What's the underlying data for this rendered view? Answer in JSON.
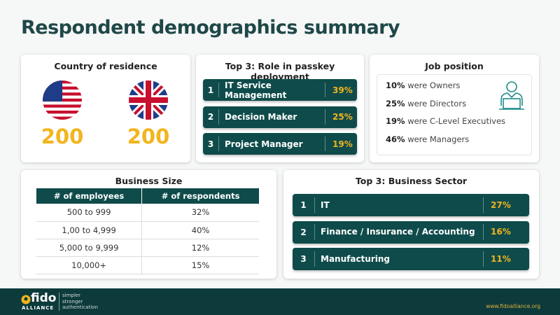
{
  "title": "Respondent demographics summary",
  "country": {
    "title": "Country of residence",
    "counts": [
      "200",
      "200"
    ]
  },
  "role": {
    "title": "Top 3: Role in passkey deployment",
    "items": [
      {
        "rank": "1",
        "label": "IT Service Management",
        "percent": "39%"
      },
      {
        "rank": "2",
        "label": "Decision Maker",
        "percent": "25%"
      },
      {
        "rank": "3",
        "label": "Project Manager",
        "percent": "19%"
      }
    ]
  },
  "job": {
    "title": "Job position",
    "items": [
      {
        "percent": "10%",
        "text": "were Owners"
      },
      {
        "percent": "25%",
        "text": "were Directors"
      },
      {
        "percent": "19%",
        "text": "were C-Level Executives"
      },
      {
        "percent": "46%",
        "text": "were Managers"
      }
    ]
  },
  "business_size": {
    "title": "Business Size",
    "table": {
      "header": [
        "# of employees",
        "# of respondents"
      ],
      "rows": [
        [
          "500 to 999",
          "32%"
        ],
        [
          "1,00 to 4,999",
          "40%"
        ],
        [
          "5,000 to 9,999",
          "12%"
        ],
        [
          "10,000+",
          "15%"
        ]
      ]
    }
  },
  "sector": {
    "title": "Top 3: Business Sector",
    "items": [
      {
        "rank": "1",
        "label": "IT",
        "percent": "27%"
      },
      {
        "rank": "2",
        "label": "Finance / Insurance / Accounting",
        "percent": "16%"
      },
      {
        "rank": "3",
        "label": "Manufacturing",
        "percent": "11%"
      }
    ]
  },
  "footer": {
    "logo": "fido",
    "logo_sub": "ALLIANCE",
    "tagline": [
      "simpler",
      "stronger",
      "authentication"
    ],
    "url": "www.fidoalliance.org"
  }
}
